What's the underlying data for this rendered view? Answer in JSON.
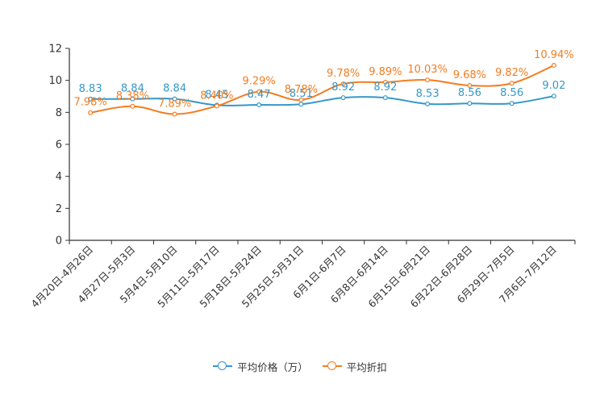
{
  "chart_data": {
    "type": "line",
    "categories": [
      "4月20日-4月26日",
      "4月27日-5月3日",
      "5月4日-5月10日",
      "5月11日-5月17日",
      "5月18日-5月24日",
      "5月25日-5月31日",
      "6月1日-6月7日",
      "6月8日-6月14日",
      "6月15日-6月21日",
      "6月22日-6月28日",
      "6月29日-7月5日",
      "7月6日-7月12日"
    ],
    "series": [
      {
        "name": "平均价格（万）",
        "color": "#3598c9",
        "values": [
          8.83,
          8.84,
          8.84,
          8.45,
          8.47,
          8.51,
          8.92,
          8.92,
          8.53,
          8.56,
          8.56,
          9.02
        ],
        "labels": [
          "8.83",
          "8.84",
          "8.84",
          "8.45",
          "8.47",
          "8.51",
          "8.92",
          "8.92",
          "8.53",
          "8.56",
          "8.56",
          "9.02"
        ]
      },
      {
        "name": "平均折扣",
        "color": "#f47c20",
        "values": [
          7.98,
          8.38,
          7.89,
          8.4,
          9.29,
          8.78,
          9.78,
          9.89,
          10.03,
          9.68,
          9.82,
          10.94
        ],
        "labels": [
          "7.98%",
          "8.38%",
          "7.89%",
          "8.40%",
          "9.29%",
          "8.78%",
          "9.78%",
          "9.89%",
          "10.03%",
          "9.68%",
          "9.82%",
          "10.94%"
        ]
      }
    ],
    "yticks": [
      "0",
      "2",
      "4",
      "6",
      "8",
      "10",
      "12"
    ],
    "ylim": [
      0,
      12
    ],
    "title": "",
    "xlabel": "",
    "ylabel": "",
    "legend_position": "bottom"
  }
}
